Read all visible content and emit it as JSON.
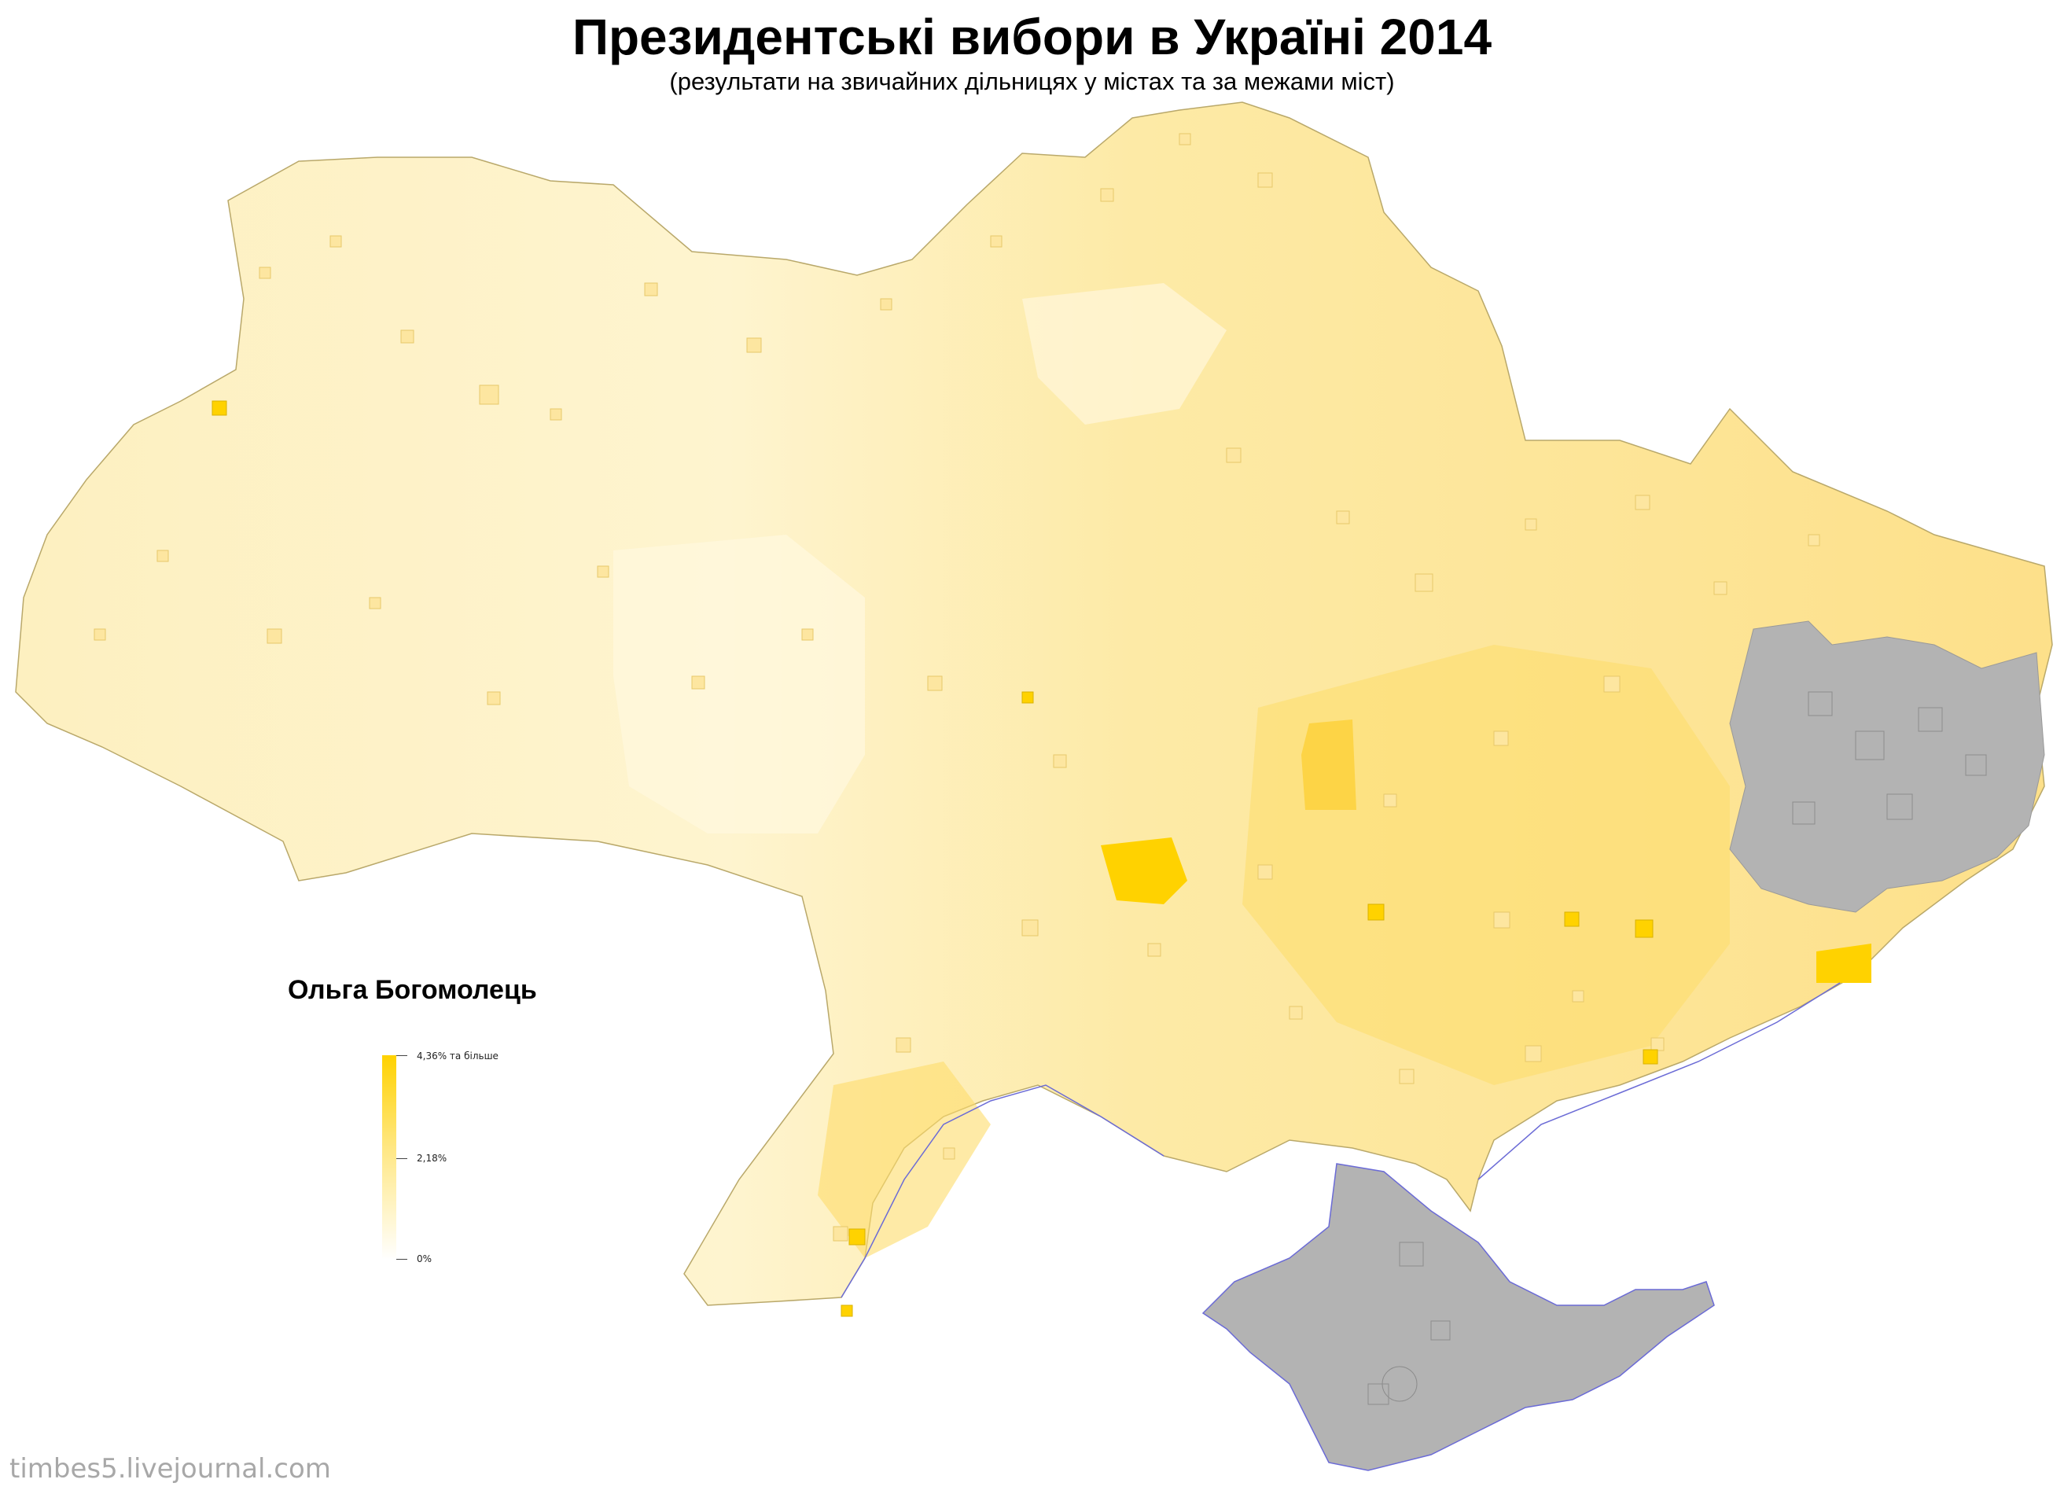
{
  "header": {
    "title": "Президентські вибори в Україні 2014",
    "subtitle": "(результати на звичайних дільницях у містах та за межами міст)"
  },
  "legend": {
    "candidate": "Ольга Богомолець",
    "max_label": "4,36% та більше",
    "mid_label": "2,18%",
    "min_label": "0%",
    "color_max": "#ffd200",
    "color_mid": "#ffe782",
    "color_min": "#ffffff",
    "no_data_color": "#b3b3b3"
  },
  "watermark": "timbes5.livejournal.com"
}
